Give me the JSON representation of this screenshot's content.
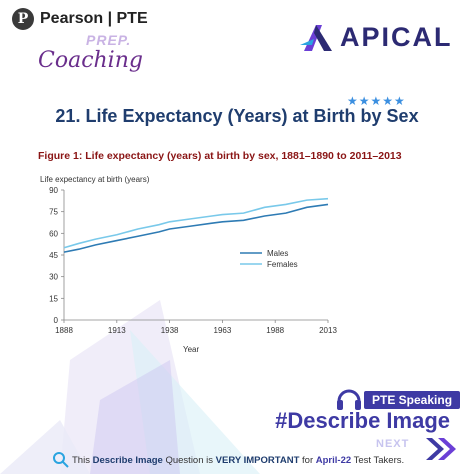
{
  "header": {
    "pearson_brand": "Pearson | PTE",
    "prep": "PREP.",
    "coaching": "Coaching",
    "apical_brand": "APICAL"
  },
  "rating": {
    "stars": "★★★★★",
    "count": 5
  },
  "title": "21. Life Expectancy (Years) at Birth by Sex",
  "figure_caption": "Figure 1: Life expectancy (years) at birth by sex, 1881–1890 to 2011–2013",
  "chart_data": {
    "type": "line",
    "ylabel": "Life expectancy at birth (years)",
    "xlabel": "Year",
    "x": [
      1888,
      1895,
      1903,
      1913,
      1923,
      1933,
      1938,
      1948,
      1958,
      1963,
      1973,
      1983,
      1993,
      2003,
      2013
    ],
    "x_ticks": [
      1888,
      1913,
      1938,
      1963,
      1988,
      2013
    ],
    "y_ticks": [
      0,
      15,
      30,
      45,
      60,
      75,
      90
    ],
    "xlim": [
      1888,
      2013
    ],
    "ylim": [
      0,
      90
    ],
    "legend_position": "right",
    "series": [
      {
        "name": "Males",
        "color": "#2e7bb4",
        "values": [
          47,
          49,
          52,
          55,
          58,
          61,
          63,
          65,
          67,
          68,
          69,
          72,
          74,
          78,
          80
        ]
      },
      {
        "name": "Females",
        "color": "#79c9ea",
        "values": [
          50,
          53,
          56,
          59,
          63,
          66,
          68,
          70,
          72,
          73,
          74,
          78,
          80,
          83,
          84
        ]
      }
    ]
  },
  "bottom": {
    "pte_speaking": "PTE Speaking",
    "describe_image": "#Describe Image",
    "next": "NEXT",
    "footer_prefix": "This ",
    "footer_describe": "Describe Image",
    "footer_mid": " Question is ",
    "footer_important": "VERY IMPORTANT",
    "footer_for": " for ",
    "footer_month": "April-22",
    "footer_suffix": " Test Takers."
  },
  "colors": {
    "title": "#1f3d6e",
    "caption": "#8a1515",
    "accent": "#3e3aa4"
  },
  "icons": [
    "pearson-logo-icon",
    "apical-logo-icon",
    "headset-icon",
    "next-arrow-icon",
    "magnifier-icon"
  ]
}
